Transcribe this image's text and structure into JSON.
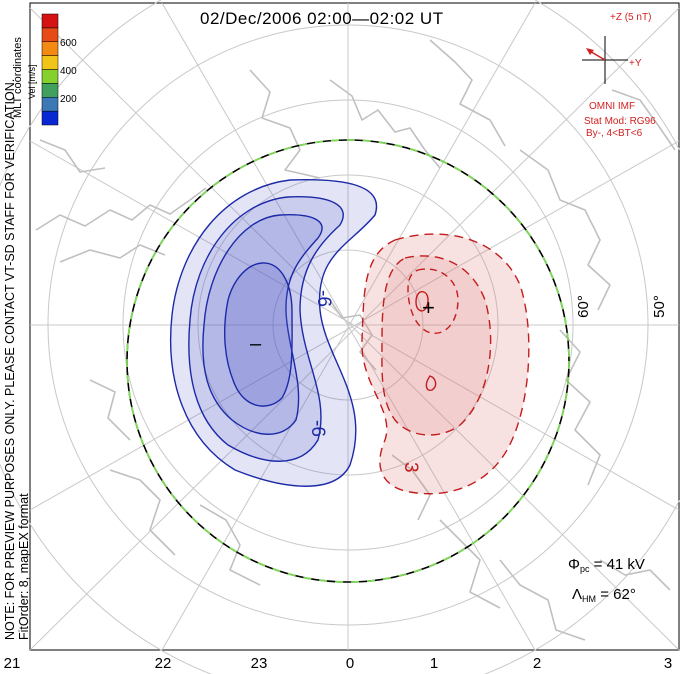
{
  "title": "02/Dec/2006 02:00—02:02 UT",
  "mlt_ticks": [
    "21",
    "22",
    "23",
    "0",
    "1",
    "2",
    "3"
  ],
  "latitude_labels": [
    "60°",
    "50°"
  ],
  "side_notes": {
    "preview_note": "NOTE: FOR PREVIEW PURPOSES ONLY. PLEASE CONTACT VT-SD STAFF FOR VERIFICATION.",
    "fit_info": "FitOrder: 8, mapEX format",
    "coordinates": "MLT coordinates"
  },
  "colorbar": {
    "title": "Vel [m/s]",
    "ticks": [
      "600",
      "400",
      "200"
    ],
    "colors": [
      "#0a28d2",
      "#3c78b4",
      "#40a060",
      "#86d02e",
      "#f0c418",
      "#f28a14",
      "#e64a16",
      "#d41414"
    ]
  },
  "imf": {
    "z_label": "+Z (5 nT)",
    "y_label": "+Y",
    "source": "OMNI IMF",
    "model": "Stat Mod: RG96",
    "condition": "By-, 4<BT<6"
  },
  "contour_labels": {
    "neg_a": "-6",
    "neg_b": "-6",
    "pos": "3",
    "min_marker": "–",
    "max_marker": "+"
  },
  "stats": {
    "phi_symbol": "Φ",
    "phi_sub": "pc",
    "phi_value": "= 41 kV",
    "lambda_symbol": "Λ",
    "lambda_sub": "HM",
    "lambda_value": "= 62°"
  },
  "colors": {
    "negative_cell": "#1c2aa8",
    "positive_cell": "#c41c1c",
    "map_lines": "#c8c8c8",
    "hm_boundary_green": "#7ed957"
  }
}
